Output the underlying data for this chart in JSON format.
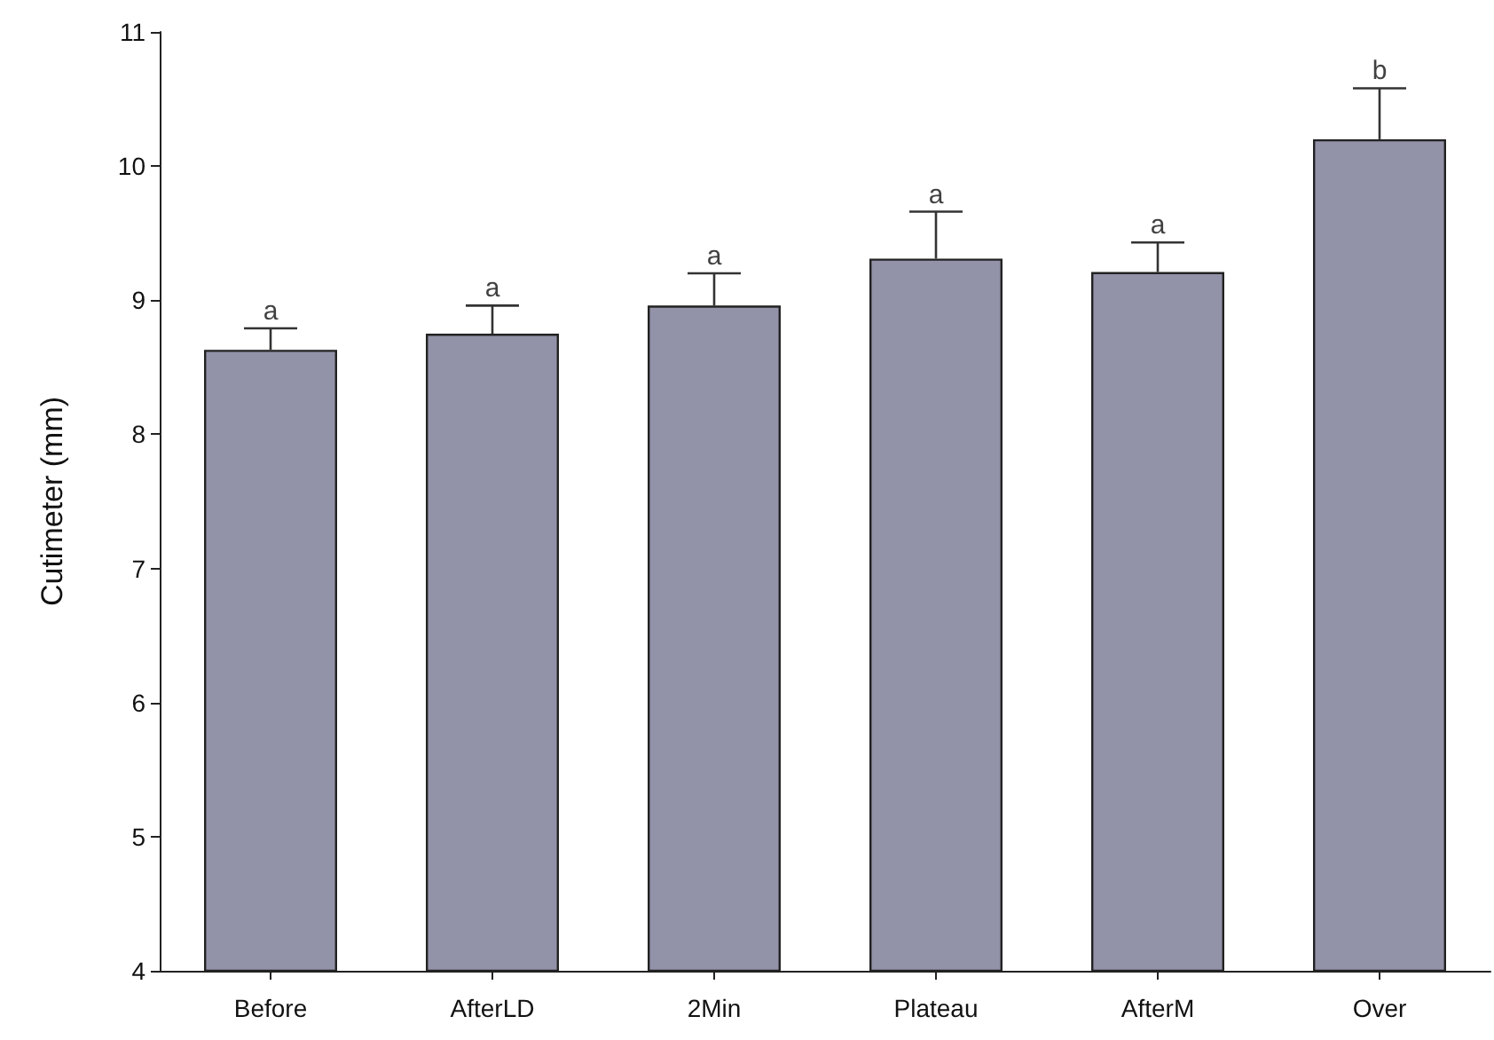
{
  "chart_data": {
    "type": "bar",
    "ylabel": "Cutimeter (mm)",
    "categories": [
      "Before",
      "AfterLD",
      "2Min",
      "Plateau",
      "AfterM",
      "Over"
    ],
    "values": [
      8.63,
      8.75,
      8.96,
      9.31,
      9.21,
      10.2
    ],
    "errors": [
      [
        8.63,
        8.79
      ],
      [
        8.75,
        8.96
      ],
      [
        8.96,
        9.2
      ],
      [
        9.31,
        9.66
      ],
      [
        9.21,
        9.43
      ],
      [
        10.2,
        10.58
      ]
    ],
    "color": "#9292a8",
    "ylim": [
      4,
      11
    ],
    "yticks": [
      4,
      5,
      6,
      7,
      8,
      9,
      10,
      11
    ],
    "annotations": [
      {
        "text": "a",
        "x": "Before",
        "y": 8.79
      },
      {
        "text": "a",
        "x": "AfterLD",
        "y": 8.96
      },
      {
        "text": "a",
        "x": "2Min",
        "y": 9.2
      },
      {
        "text": "a",
        "x": "Plateau",
        "y": 9.66
      },
      {
        "text": "a",
        "x": "AfterM",
        "y": 9.43
      },
      {
        "text": "b",
        "x": "Over",
        "y": 10.58
      }
    ]
  }
}
